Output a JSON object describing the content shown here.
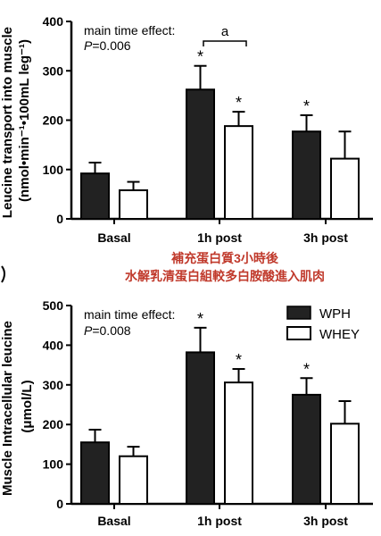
{
  "caption": {
    "line1": "補充蛋白質3小時後",
    "line2": "水解乳清蛋白組較多白胺酸進入肌肉"
  },
  "colors": {
    "wph": "#222222",
    "whey": "#ffffff",
    "caption": "#c0392b"
  },
  "chart_data": [
    {
      "type": "bar",
      "ylabel_line1": "Leucine transport into muscle",
      "ylabel_line2": "(nmol•min⁻¹•100mL leg⁻¹)",
      "ylim": [
        0,
        400
      ],
      "yticks": [
        "0",
        "100",
        "200",
        "300",
        "400"
      ],
      "categories": [
        "Basal",
        "1h post",
        "3h post"
      ],
      "series": [
        {
          "name": "WPH",
          "values": [
            92,
            262,
            177
          ],
          "errors": [
            22,
            48,
            33
          ],
          "sig": [
            "",
            "*",
            "*"
          ]
        },
        {
          "name": "WHEY",
          "values": [
            58,
            188,
            122
          ],
          "errors": [
            17,
            29,
            55
          ],
          "sig": [
            "",
            "*",
            ""
          ]
        }
      ],
      "annotation_line1": "main time effect:",
      "annotation_p_label": "P",
      "annotation_p_value": "=0.006",
      "bracket_label": "a",
      "legend": false
    },
    {
      "type": "bar",
      "ylabel_line1": "Muscle Intracellular leucine",
      "ylabel_line2": "(μmol/L)",
      "ylim": [
        0,
        500
      ],
      "yticks": [
        "0",
        "100",
        "200",
        "300",
        "400",
        "500"
      ],
      "categories": [
        "Basal",
        "1h post",
        "3h post"
      ],
      "series": [
        {
          "name": "WPH",
          "values": [
            155,
            382,
            275
          ],
          "errors": [
            32,
            62,
            42
          ],
          "sig": [
            "",
            "*",
            "*"
          ]
        },
        {
          "name": "WHEY",
          "values": [
            120,
            306,
            202
          ],
          "errors": [
            24,
            34,
            57
          ],
          "sig": [
            "",
            "*",
            ""
          ]
        }
      ],
      "annotation_line1": "main time effect:",
      "annotation_p_label": "P",
      "annotation_p_value": "=0.008",
      "legend": true
    }
  ]
}
